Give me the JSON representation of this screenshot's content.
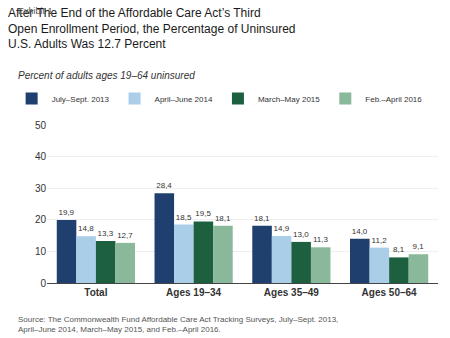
{
  "chart_data": {
    "type": "bar",
    "title": "After The End of the Affordable Care Act’s Third\nOpen Enrollment Period, the Percentage of Uninsured\nU.S. Adults Was 12.7 Percent",
    "subtitle": "Percent of adults ages 19–64 uninsured",
    "annotations": [
      "Exhibit 1",
      "Source: The Commonwealth Fund Affordable Care Act Tracking Surveys, July–Sept. 2013, April–June 2014, March–May 2015, and Feb.–April 2016."
    ],
    "categories": [
      "Total",
      "Ages 19–34",
      "Ages 35–49",
      "Ages 50–64"
    ],
    "series": [
      {
        "name": "July–Sept. 2013",
        "color": "#1f3f6e",
        "values": [
          19.9,
          28.4,
          18.1,
          14.0
        ],
        "value_labels": [
          "19,9",
          "28,4",
          "18,1",
          "14,0"
        ]
      },
      {
        "name": "April–June 2014",
        "color": "#aacde8",
        "values": [
          14.8,
          18.5,
          14.9,
          11.2
        ],
        "value_labels": [
          "14,8",
          "18,5",
          "14,9",
          "11,2"
        ]
      },
      {
        "name": "March–May 2015",
        "color": "#1d6040",
        "values": [
          13.3,
          19.5,
          13.0,
          8.1
        ],
        "value_labels": [
          "13,3",
          "19,5",
          "13,0",
          "8,1"
        ]
      },
      {
        "name": "Feb.–April 2016",
        "color": "#8ab89a",
        "values": [
          12.7,
          18.1,
          11.3,
          9.1
        ],
        "value_labels": [
          "12,7",
          "18,1",
          "11,3",
          "9,1"
        ]
      }
    ],
    "ylim": [
      0,
      50
    ],
    "yticks": [
      0,
      10,
      20,
      30,
      40,
      50
    ],
    "grid": true,
    "legend": "top",
    "data_labels": true
  }
}
